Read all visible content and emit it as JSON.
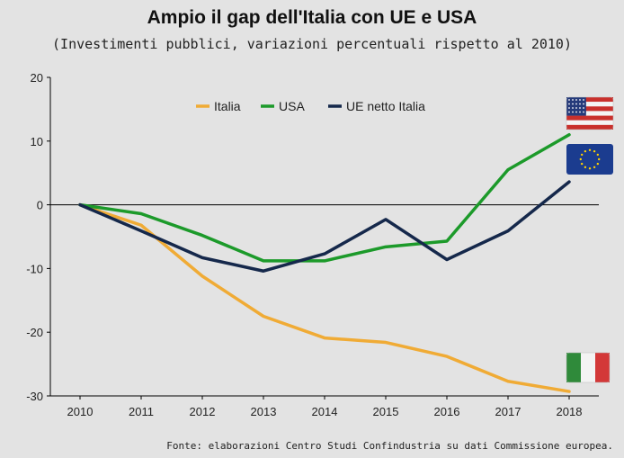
{
  "chart_data": {
    "type": "line",
    "title": "Ampio il gap dell'Italia con UE e USA",
    "subtitle": "(Investimenti pubblici, variazioni percentuali rispetto al 2010)",
    "source": "Fonte: elaborazioni Centro Studi Confindustria su dati Commissione europea.",
    "xlabel": "",
    "ylabel": "",
    "x": [
      "2010",
      "2011",
      "2012",
      "2013",
      "2014",
      "2015",
      "2016",
      "2017",
      "2018"
    ],
    "ylim": [
      -30,
      20
    ],
    "yticks": [
      20,
      10,
      0,
      -10,
      -20,
      -30
    ],
    "grid": false,
    "legend_position": "top",
    "series": [
      {
        "name": "Italia",
        "color": "#f0ab35",
        "flag": "italy-flag-icon",
        "values": [
          0,
          -3.2,
          -11.2,
          -17.5,
          -20.9,
          -21.6,
          -23.8,
          -27.7,
          -29.3
        ]
      },
      {
        "name": "USA",
        "color": "#1c9a2a",
        "flag": "usa-flag-icon",
        "values": [
          0,
          -1.4,
          -4.8,
          -8.8,
          -8.8,
          -6.6,
          -5.7,
          5.5,
          11.0
        ]
      },
      {
        "name": "UE netto Italia",
        "color": "#15284b",
        "flag": "eu-flag-icon",
        "values": [
          0,
          -4.1,
          -8.3,
          -10.4,
          -7.7,
          -2.3,
          -8.6,
          -4.1,
          3.6
        ]
      }
    ]
  }
}
